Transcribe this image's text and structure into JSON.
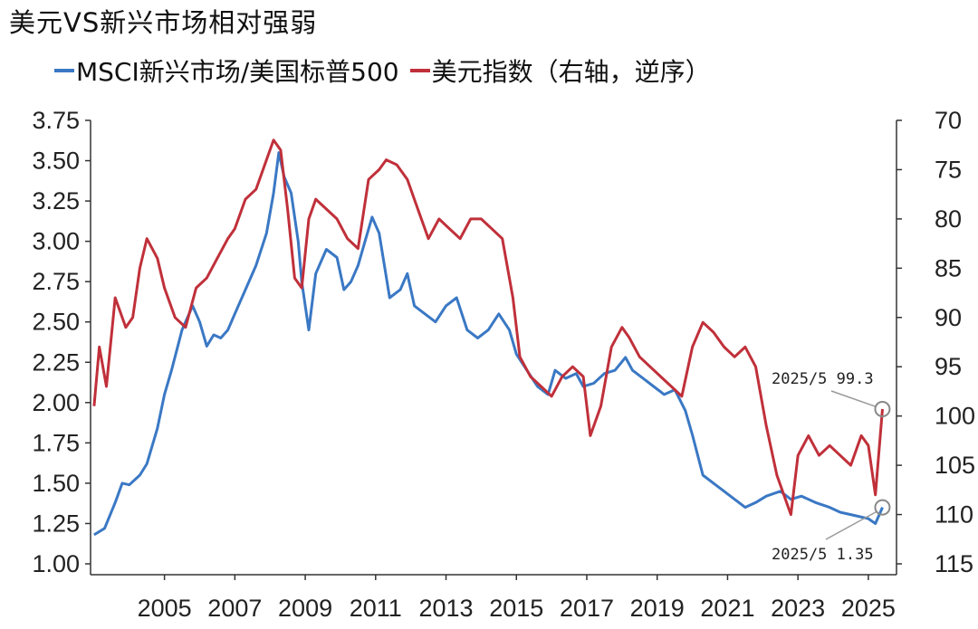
{
  "title": "美元VS新兴市场相对强弱",
  "legend": [
    {
      "label": "MSCI新兴市场/美国标普500",
      "color": "#3a78c4"
    },
    {
      "label": "美元指数（右轴，逆序）",
      "color": "#c0303a"
    }
  ],
  "chart_data": {
    "type": "line",
    "title": "美元VS新兴市场相对强弱",
    "xlabel": "",
    "ylabel": "",
    "x_ticks": [
      "2005",
      "2007",
      "2009",
      "2011",
      "2013",
      "2015",
      "2017",
      "2019",
      "2021",
      "2023",
      "2025"
    ],
    "xlim": [
      2002.9,
      2025.8
    ],
    "left_axis": {
      "min": 1.0,
      "max": 3.75,
      "ticks": [
        "1.00",
        "1.25",
        "1.50",
        "1.75",
        "2.00",
        "2.25",
        "2.50",
        "2.75",
        "3.00",
        "3.25",
        "3.50",
        "3.75"
      ]
    },
    "right_axis": {
      "min": 70,
      "max": 115,
      "reversed": true,
      "ticks": [
        "70",
        "75",
        "80",
        "85",
        "90",
        "95",
        "100",
        "105",
        "110",
        "115"
      ]
    },
    "series": [
      {
        "name": "MSCI新兴市场/美国标普500",
        "axis": "left",
        "color": "#3a78c4",
        "x": [
          2003.0,
          2003.3,
          2003.6,
          2003.8,
          2004.0,
          2004.3,
          2004.5,
          2004.8,
          2005.0,
          2005.2,
          2005.5,
          2005.8,
          2006.0,
          2006.2,
          2006.4,
          2006.6,
          2006.8,
          2007.0,
          2007.3,
          2007.6,
          2007.9,
          2008.1,
          2008.25,
          2008.4,
          2008.6,
          2008.8,
          2008.9,
          2009.1,
          2009.3,
          2009.6,
          2009.9,
          2010.1,
          2010.3,
          2010.5,
          2010.7,
          2010.9,
          2011.1,
          2011.4,
          2011.7,
          2011.9,
          2012.1,
          2012.4,
          2012.7,
          2013.0,
          2013.3,
          2013.6,
          2013.9,
          2014.2,
          2014.5,
          2014.8,
          2015.0,
          2015.3,
          2015.6,
          2015.9,
          2016.1,
          2016.4,
          2016.7,
          2016.9,
          2017.2,
          2017.5,
          2017.8,
          2018.1,
          2018.3,
          2018.6,
          2018.9,
          2019.2,
          2019.5,
          2019.8,
          2020.0,
          2020.3,
          2020.6,
          2020.9,
          2021.2,
          2021.5,
          2021.8,
          2022.1,
          2022.5,
          2022.8,
          2023.1,
          2023.5,
          2023.9,
          2024.2,
          2024.6,
          2025.0,
          2025.2,
          2025.4
        ],
        "values": [
          1.18,
          1.22,
          1.38,
          1.5,
          1.49,
          1.55,
          1.62,
          1.84,
          2.05,
          2.2,
          2.45,
          2.6,
          2.5,
          2.35,
          2.42,
          2.4,
          2.45,
          2.55,
          2.7,
          2.85,
          3.05,
          3.3,
          3.55,
          3.4,
          3.3,
          3.0,
          2.75,
          2.45,
          2.8,
          2.95,
          2.9,
          2.7,
          2.75,
          2.85,
          3.0,
          3.15,
          3.05,
          2.65,
          2.7,
          2.8,
          2.6,
          2.55,
          2.5,
          2.6,
          2.65,
          2.45,
          2.4,
          2.45,
          2.55,
          2.45,
          2.3,
          2.2,
          2.1,
          2.05,
          2.2,
          2.15,
          2.18,
          2.1,
          2.12,
          2.18,
          2.2,
          2.28,
          2.2,
          2.15,
          2.1,
          2.05,
          2.08,
          1.95,
          1.8,
          1.55,
          1.5,
          1.45,
          1.4,
          1.35,
          1.38,
          1.42,
          1.45,
          1.4,
          1.42,
          1.38,
          1.35,
          1.32,
          1.3,
          1.28,
          1.25,
          1.35
        ]
      },
      {
        "name": "美元指数（右轴，逆序）",
        "axis": "right",
        "color": "#c0303a",
        "x": [
          2003.0,
          2003.15,
          2003.35,
          2003.6,
          2003.9,
          2004.1,
          2004.3,
          2004.5,
          2004.8,
          2005.0,
          2005.3,
          2005.6,
          2005.9,
          2006.2,
          2006.5,
          2006.8,
          2007.0,
          2007.3,
          2007.6,
          2007.9,
          2008.1,
          2008.3,
          2008.5,
          2008.7,
          2008.9,
          2009.1,
          2009.3,
          2009.6,
          2009.9,
          2010.2,
          2010.5,
          2010.8,
          2011.1,
          2011.3,
          2011.6,
          2011.9,
          2012.2,
          2012.5,
          2012.8,
          2013.1,
          2013.4,
          2013.7,
          2014.0,
          2014.3,
          2014.6,
          2014.9,
          2015.1,
          2015.4,
          2015.7,
          2016.0,
          2016.3,
          2016.6,
          2016.9,
          2017.1,
          2017.4,
          2017.7,
          2018.0,
          2018.2,
          2018.5,
          2018.8,
          2019.1,
          2019.4,
          2019.7,
          2020.0,
          2020.3,
          2020.6,
          2020.9,
          2021.2,
          2021.5,
          2021.8,
          2022.1,
          2022.4,
          2022.7,
          2022.8,
          2023.0,
          2023.3,
          2023.6,
          2023.9,
          2024.2,
          2024.5,
          2024.8,
          2025.0,
          2025.2,
          2025.4
        ],
        "values": [
          99.0,
          93.0,
          97.0,
          88.0,
          91.0,
          90.0,
          85.0,
          82.0,
          84.0,
          87.0,
          90.0,
          91.0,
          87.0,
          86.0,
          84.0,
          82.0,
          81.0,
          78.0,
          77.0,
          74.0,
          72.0,
          73.0,
          79.0,
          86.0,
          87.0,
          80.0,
          78.0,
          79.0,
          80.0,
          82.0,
          83.0,
          76.0,
          75.0,
          74.0,
          74.5,
          76.0,
          79.0,
          82.0,
          80.0,
          81.0,
          82.0,
          80.0,
          80.0,
          81.0,
          82.0,
          88.0,
          94.0,
          96.0,
          97.0,
          98.0,
          96.0,
          95.0,
          96.0,
          102.0,
          99.0,
          93.0,
          91.0,
          92.0,
          94.0,
          95.0,
          96.0,
          97.0,
          98.0,
          93.0,
          90.5,
          91.5,
          93.0,
          94.0,
          93.0,
          95.0,
          101.0,
          106.0,
          109.0,
          110.0,
          104.0,
          102.0,
          104.0,
          103.0,
          104.0,
          105.0,
          102.0,
          103.0,
          108.0,
          99.3
        ]
      }
    ],
    "annotations": [
      {
        "text": "2025/5 99.3",
        "series": 1,
        "x": 2025.4,
        "y": 99.3
      },
      {
        "text": "2025/5 1.35",
        "series": 0,
        "x": 2025.4,
        "y": 1.35
      }
    ]
  }
}
